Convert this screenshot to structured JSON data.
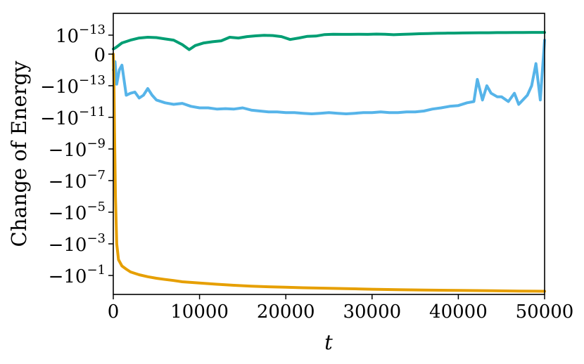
{
  "chart_data": {
    "type": "line",
    "xlabel": "t",
    "ylabel": "Change of Energy",
    "xlim": [
      0,
      50000
    ],
    "y_scale": "symlog",
    "x_ticks": [
      {
        "value": 0,
        "label": "0"
      },
      {
        "value": 10000,
        "label": "10000"
      },
      {
        "value": 20000,
        "label": "20000"
      },
      {
        "value": 30000,
        "label": "30000"
      },
      {
        "value": 40000,
        "label": "40000"
      },
      {
        "value": 50000,
        "label": "50000"
      }
    ],
    "y_ticks": [
      {
        "exp": -13,
        "sign": 1,
        "base": "10",
        "sup": "−13"
      },
      {
        "exp": null,
        "sign": 0,
        "base": "0",
        "sup": ""
      },
      {
        "exp": -13,
        "sign": -1,
        "base": "−10",
        "sup": "−13"
      },
      {
        "exp": -11,
        "sign": -1,
        "base": "−10",
        "sup": "−11"
      },
      {
        "exp": -9,
        "sign": -1,
        "base": "−10",
        "sup": "−9"
      },
      {
        "exp": -7,
        "sign": -1,
        "base": "−10",
        "sup": "−7"
      },
      {
        "exp": -5,
        "sign": -1,
        "base": "−10",
        "sup": "−5"
      },
      {
        "exp": -3,
        "sign": -1,
        "base": "−10",
        "sup": "−3"
      },
      {
        "exp": -1,
        "sign": -1,
        "base": "−10",
        "sup": "−1"
      }
    ],
    "grid": false,
    "series": [
      {
        "color": "#009E73",
        "x": [
          0,
          300,
          1000,
          2000,
          3000,
          4000,
          5000,
          6000,
          7000,
          8000,
          8800,
          9500,
          10500,
          11500,
          12500,
          13500,
          14500,
          15500,
          16500,
          17500,
          18500,
          19500,
          20500,
          21500,
          22500,
          23500,
          24500,
          25500,
          26500,
          27500,
          28500,
          29500,
          30500,
          31500,
          32500,
          33500,
          34500,
          35500,
          36500,
          37500,
          38500,
          39500,
          40500,
          41500,
          42500,
          43500,
          44500,
          45500,
          46500,
          47500,
          48500,
          49500,
          50000
        ],
        "y": [
          3.5e-15,
          5e-15,
          1.5e-14,
          3e-14,
          5e-14,
          6e-14,
          5.5e-14,
          4e-14,
          3e-14,
          1e-14,
          3e-15,
          8e-15,
          1.5e-14,
          2e-14,
          2.5e-14,
          6e-14,
          5e-14,
          7e-14,
          8.5e-14,
          9.5e-14,
          9e-14,
          7e-14,
          3.5e-14,
          5e-14,
          7.5e-14,
          8e-14,
          1.15e-13,
          1.25e-13,
          1.2e-13,
          1.2e-13,
          1.25e-13,
          1.2e-13,
          1.3e-13,
          1.25e-13,
          1.1e-13,
          1.2e-13,
          1.3e-13,
          1.4e-13,
          1.45e-13,
          1.55e-13,
          1.6e-13,
          1.65e-13,
          1.7e-13,
          1.75e-13,
          1.8e-13,
          1.8e-13,
          1.85e-13,
          1.85e-13,
          1.9e-13,
          1.9e-13,
          1.95e-13,
          1.95e-13,
          1.95e-13
        ]
      },
      {
        "color": "#56B4E9",
        "x": [
          0,
          200,
          400,
          700,
          1000,
          1500,
          2000,
          2500,
          3000,
          3500,
          4000,
          4500,
          5000,
          6000,
          7000,
          8000,
          9000,
          10000,
          11000,
          12000,
          13000,
          14000,
          15000,
          16000,
          17000,
          18000,
          19000,
          20000,
          21000,
          22000,
          23000,
          24000,
          25000,
          26000,
          27000,
          28000,
          29000,
          30000,
          31000,
          32000,
          33000,
          34000,
          35000,
          36000,
          37000,
          38000,
          39000,
          40000,
          41000,
          41800,
          42200,
          42800,
          43300,
          43800,
          44500,
          45000,
          45800,
          46500,
          47000,
          48000,
          48500,
          49000,
          49500,
          50000
        ],
        "y": [
          -1e-14,
          -3e-15,
          -8e-14,
          -1e-14,
          -5e-15,
          -4e-13,
          -3e-13,
          -2.5e-13,
          -6e-13,
          -4e-13,
          -1.5e-13,
          -4e-13,
          -8e-13,
          -1.2e-12,
          -1.5e-12,
          -1.3e-12,
          -2e-12,
          -2.5e-12,
          -2.5e-12,
          -3e-12,
          -2.8e-12,
          -3e-12,
          -2.5e-12,
          -3.5e-12,
          -4e-12,
          -4.5e-12,
          -4.5e-12,
          -5e-12,
          -5e-12,
          -5.5e-12,
          -6e-12,
          -5.5e-12,
          -5e-12,
          -5.5e-12,
          -6e-12,
          -5.5e-12,
          -5e-12,
          -5e-12,
          -4.5e-12,
          -5e-12,
          -5e-12,
          -4.5e-12,
          -4.5e-12,
          -4e-12,
          -3e-12,
          -2.5e-12,
          -2e-12,
          -1.8e-12,
          -1.2e-12,
          -1e-12,
          -4e-14,
          -8e-13,
          -1e-13,
          -3e-13,
          -5e-13,
          -5e-13,
          -1e-12,
          -3e-13,
          -1.5e-12,
          -4e-13,
          -1e-13,
          -4e-15,
          -8e-13,
          3e-14
        ]
      },
      {
        "color": "#E69F00",
        "x": [
          0,
          80,
          150,
          250,
          400,
          600,
          1000,
          1500,
          2000,
          3000,
          4000,
          5000,
          6000,
          7000,
          8000,
          10000,
          12000,
          14000,
          16000,
          18000,
          20000,
          22000,
          25000,
          28000,
          30000,
          33000,
          36000,
          40000,
          44000,
          47000,
          50000
        ],
        "y": [
          -1e-15,
          -1e-13,
          -1e-10,
          -1e-06,
          -0.001,
          -0.01,
          -0.025,
          -0.04,
          -0.06,
          -0.09,
          -0.12,
          -0.15,
          -0.18,
          -0.21,
          -0.25,
          -0.3,
          -0.36,
          -0.42,
          -0.48,
          -0.52,
          -0.56,
          -0.6,
          -0.65,
          -0.7,
          -0.74,
          -0.79,
          -0.83,
          -0.88,
          -0.93,
          -0.97,
          -1.0
        ]
      }
    ]
  }
}
